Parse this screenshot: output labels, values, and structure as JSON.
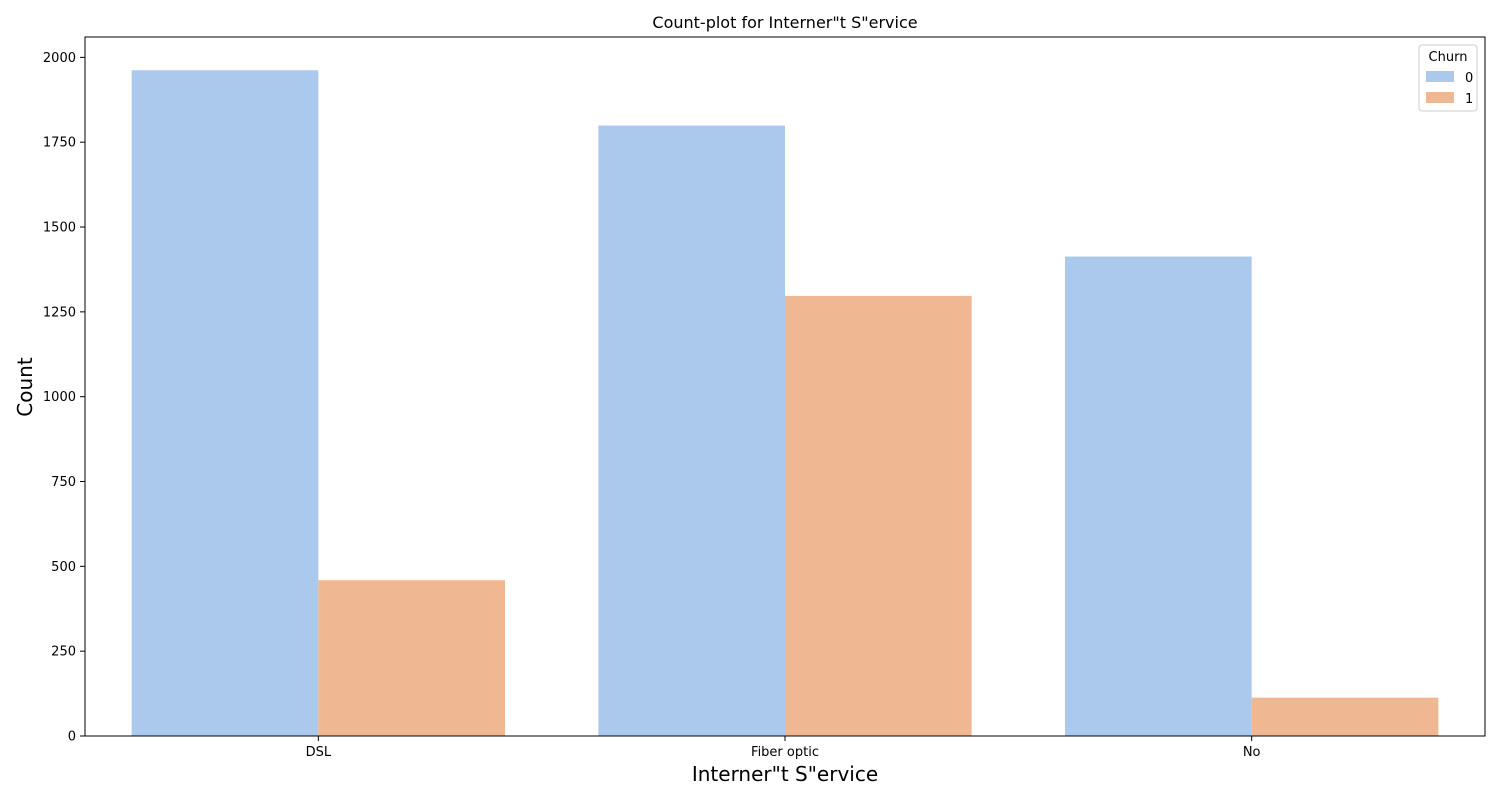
{
  "chart_data": {
    "type": "bar",
    "title": "Count-plot for Interner\"t S\"ervice",
    "xlabel": "Interner\"t S\"ervice",
    "ylabel": "Count",
    "categories": [
      "DSL",
      "Fiber optic",
      "No"
    ],
    "series": [
      {
        "name": "0",
        "values": [
          1962,
          1799,
          1413
        ],
        "color": "#abc9ed"
      },
      {
        "name": "1",
        "values": [
          459,
          1297,
          113
        ],
        "color": "#f0b892"
      }
    ],
    "ylim": [
      0,
      2060
    ],
    "yticks": [
      0,
      250,
      500,
      750,
      1000,
      1250,
      1500,
      1750,
      2000
    ],
    "grid": false,
    "legend": {
      "title": "Churn",
      "placement": "top-right"
    }
  }
}
